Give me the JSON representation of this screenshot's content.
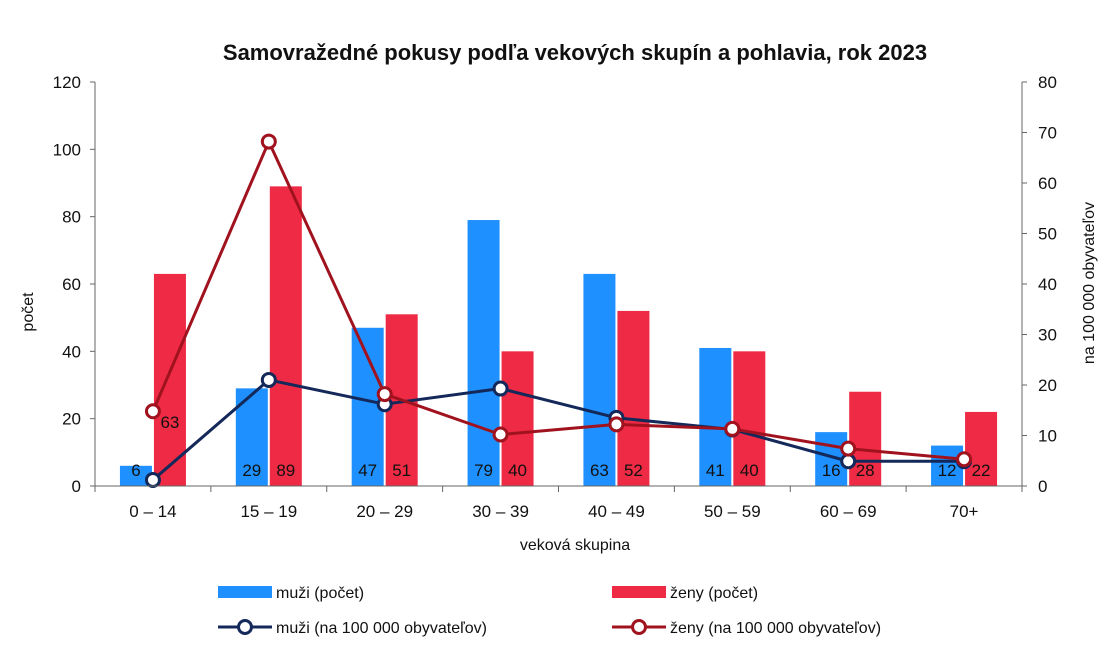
{
  "chart_data": {
    "type": "bar",
    "title": "Samovražedné pokusy podľa vekových skupín a pohlavia, rok 2023",
    "xlabel": "veková  skupina",
    "ylabel": "počet",
    "y2label": "na 100 000 obyvateľov",
    "categories": [
      "0 – 14",
      "15 – 19",
      "20 – 29",
      "30 – 39",
      "40 – 49",
      "50 – 59",
      "60 – 69",
      "70+"
    ],
    "ylim": [
      0,
      120
    ],
    "yticks": [
      "0",
      "20",
      "40",
      "60",
      "80",
      "100",
      "120"
    ],
    "y2lim": [
      0,
      80
    ],
    "y2ticks": [
      "0",
      "10",
      "20",
      "30",
      "40",
      "50",
      "60",
      "70",
      "80"
    ],
    "grid": false,
    "legend_position": "bottom",
    "series": [
      {
        "name": "muži (počet)",
        "kind": "bar",
        "axis": "left",
        "color": "#1E90FF",
        "values": [
          6,
          29,
          47,
          79,
          63,
          41,
          16,
          12
        ],
        "labels": [
          "6",
          "29",
          "47",
          "79",
          "63",
          "41",
          "16",
          "12"
        ]
      },
      {
        "name": "ženy (počet)",
        "kind": "bar",
        "axis": "left",
        "color": "#EE2A44",
        "values": [
          63,
          89,
          51,
          40,
          52,
          40,
          28,
          22
        ],
        "labels": [
          "63",
          "89",
          "51",
          "40",
          "52",
          "40",
          "28",
          "22"
        ]
      },
      {
        "name": "muži (na 100 000 obyvateľov)",
        "kind": "line",
        "axis": "right",
        "color": "#14285A",
        "values": [
          1.2,
          21.0,
          16.2,
          19.3,
          13.5,
          11.2,
          4.9,
          4.9
        ]
      },
      {
        "name": "ženy (na 100 000 obyvateľov)",
        "kind": "line",
        "axis": "right",
        "color": "#A0131E",
        "values": [
          14.8,
          68.2,
          18.2,
          10.2,
          12.2,
          11.3,
          7.4,
          5.3
        ]
      }
    ]
  }
}
